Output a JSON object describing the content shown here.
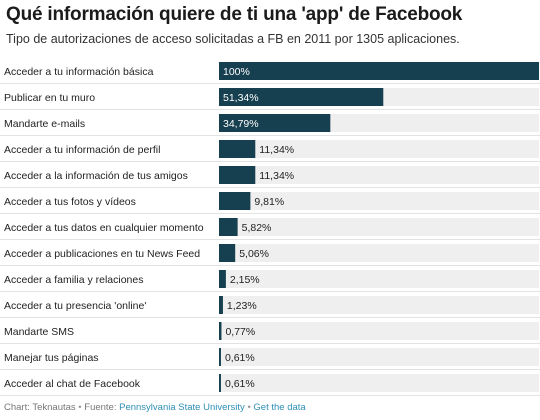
{
  "title": "Qué información quiere de ti una 'app' de Facebook",
  "subtitle": "Tipo de autorizaciones de acceso solicitadas a FB en 2011 por 1305 aplicaciones.",
  "footer": {
    "credit": "Chart: Teknautas",
    "bullet": "•",
    "source_label": "Fuente:",
    "source": "Pennsylvania State University",
    "get_data": "Get the data"
  },
  "colors": {
    "bar": "#163f4f",
    "track": "#efefef",
    "label_on_bar": "#ffffff",
    "label_off_bar": "#222222",
    "row_divider": "#e2e2e2"
  },
  "chart_data": {
    "type": "bar",
    "orientation": "horizontal",
    "categories": [
      "Acceder a tu información básica",
      "Publicar en tu muro",
      "Mandarte e-mails",
      "Acceder a tu información de perfil",
      "Acceder a la información de tus amigos",
      "Acceder a tus fotos y vídeos",
      "Acceder a tus datos en cualquier momento",
      "Acceder a publicaciones en tu News Feed",
      "Acceder a familia y relaciones",
      "Acceder a tu presencia 'online'",
      "Mandarte SMS",
      "Manejar tus páginas",
      "Acceder al chat de Facebook"
    ],
    "values": [
      100,
      51.34,
      34.79,
      11.34,
      11.34,
      9.81,
      5.82,
      5.06,
      2.15,
      1.23,
      0.77,
      0.61,
      0.61
    ],
    "value_labels": [
      "100%",
      "51,34%",
      "34,79%",
      "11,34%",
      "11,34%",
      "9,81%",
      "5,82%",
      "5,06%",
      "2,15%",
      "1,23%",
      "0,77%",
      "0,61%",
      "0,61%"
    ],
    "xlim": [
      0,
      100
    ],
    "title": "Qué información quiere de ti una 'app' de Facebook",
    "xlabel": "",
    "ylabel": ""
  }
}
